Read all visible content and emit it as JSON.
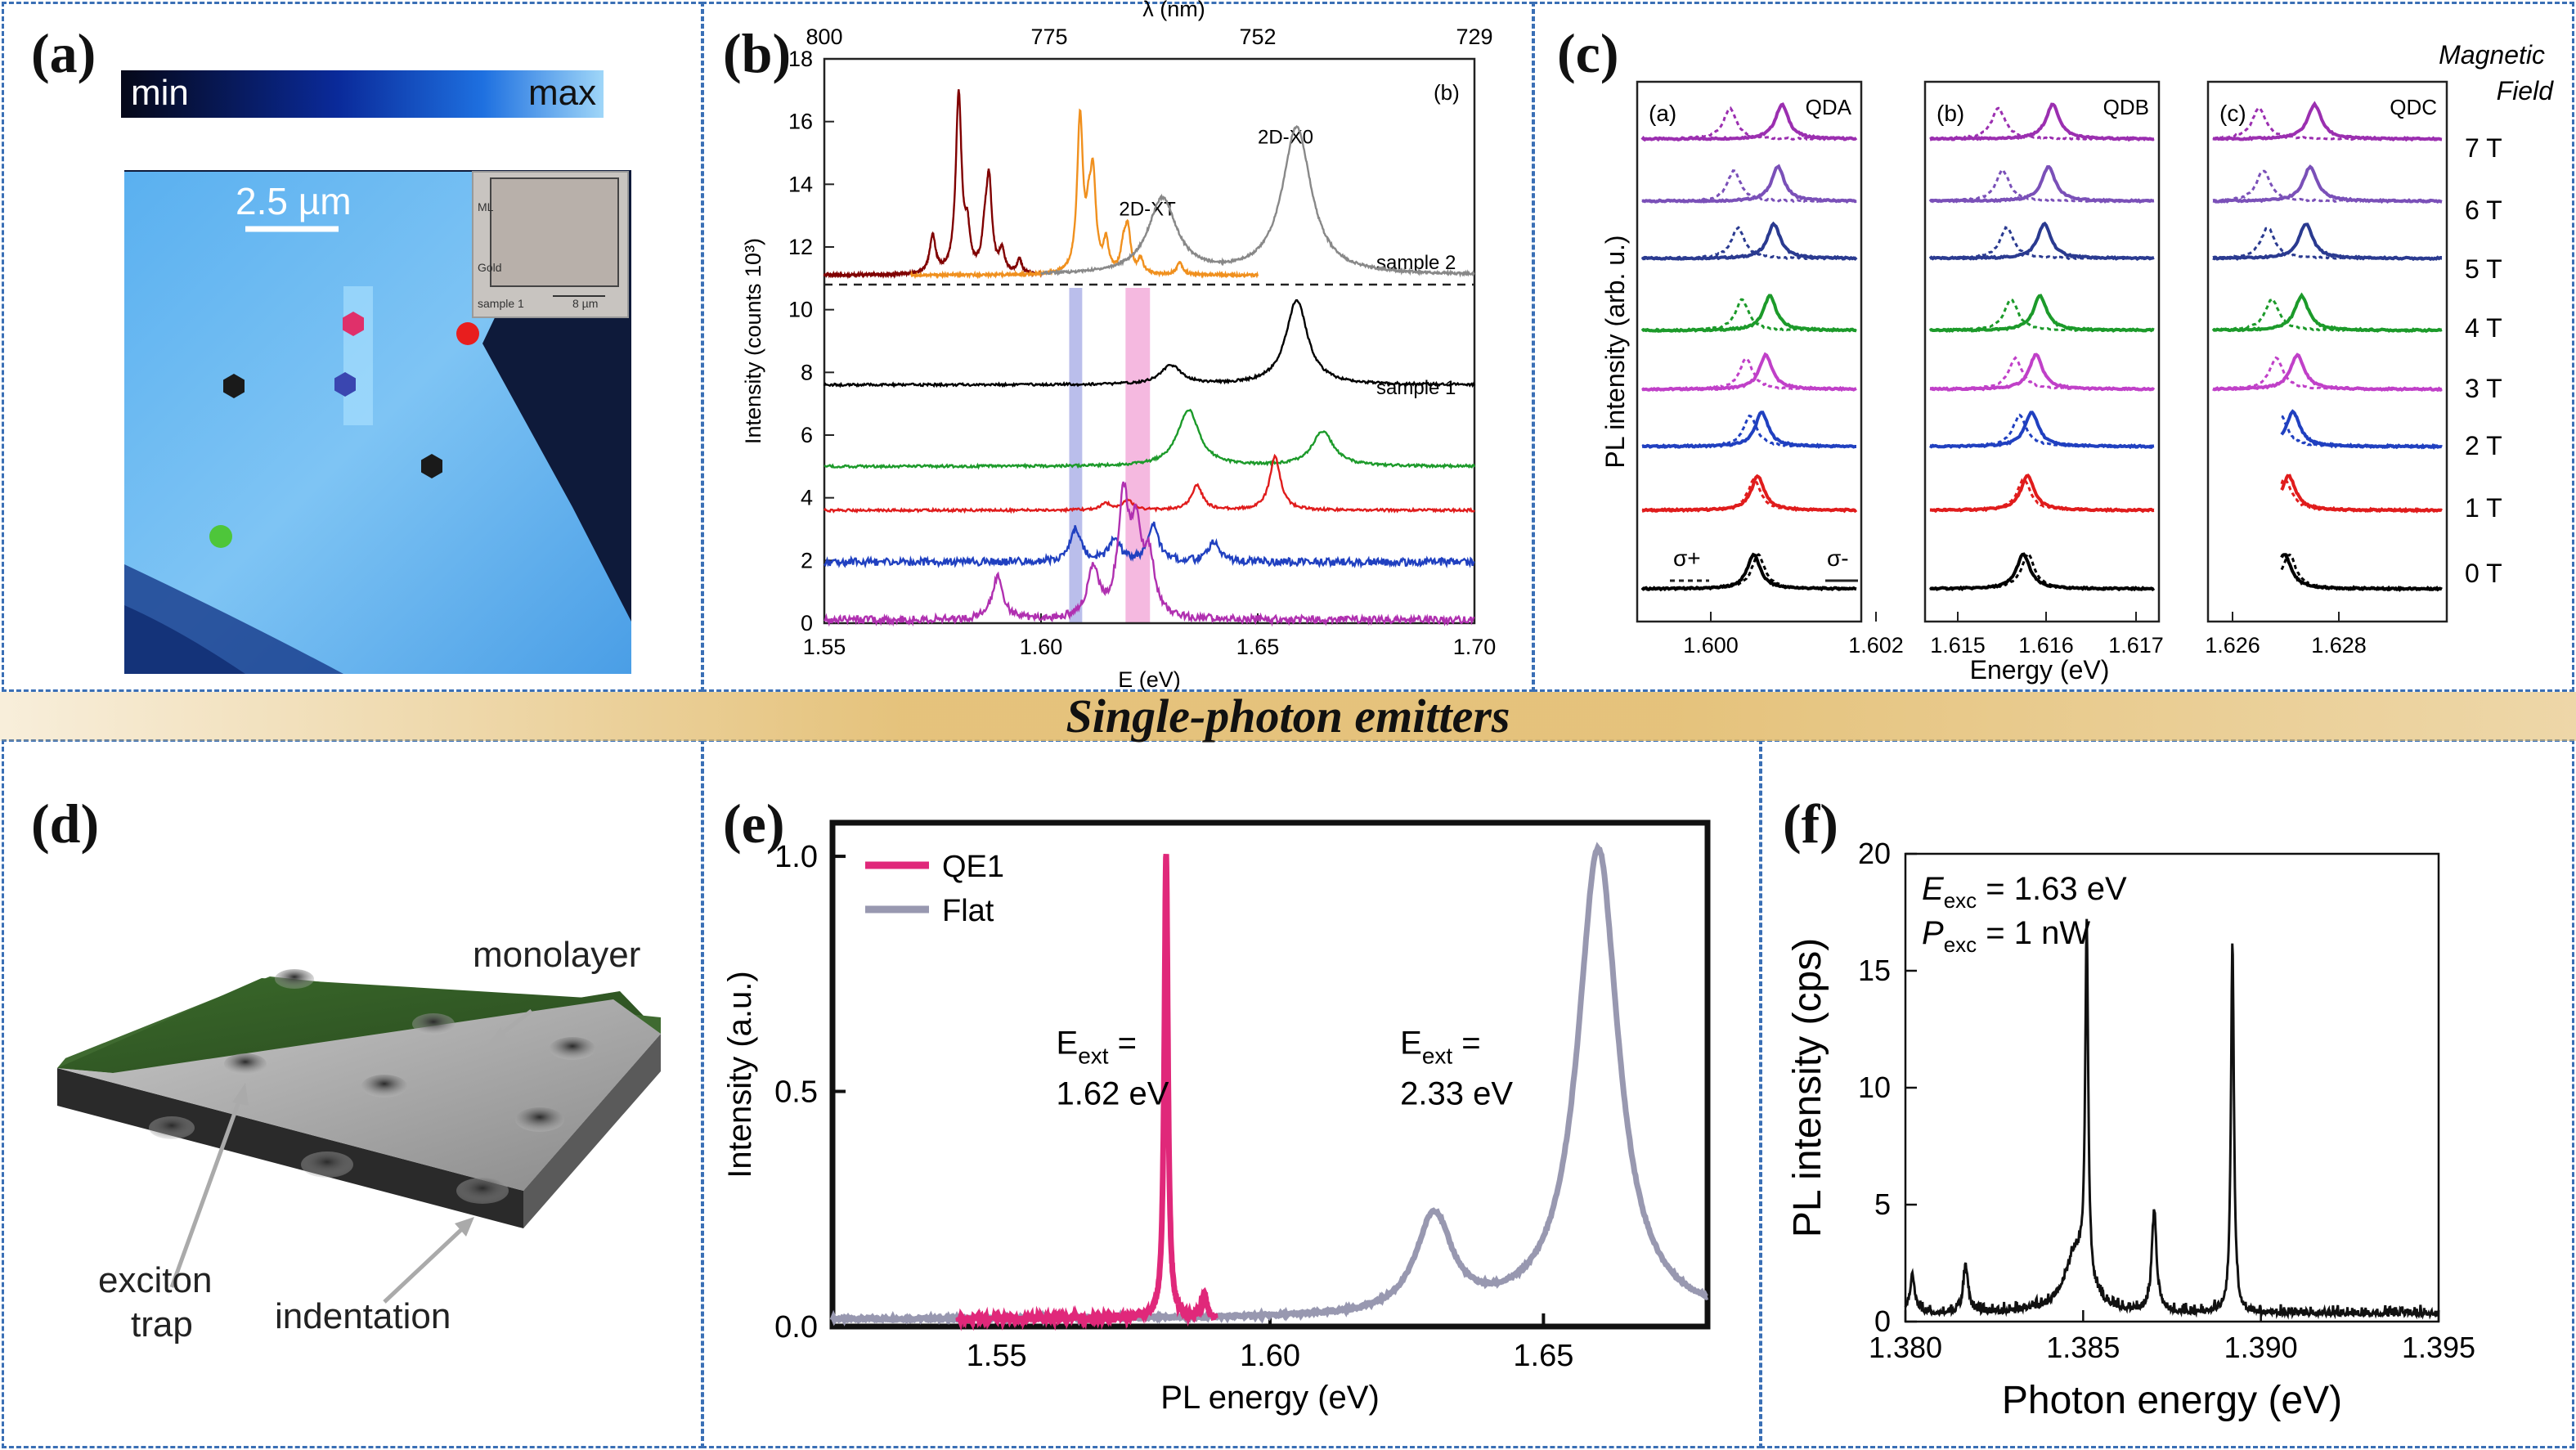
{
  "panels": {
    "a": "(a)",
    "b": "(b)",
    "c": "(c)",
    "d": "(d)",
    "e": "(e)",
    "f": "(f)"
  },
  "banner": "Single-photon emitters",
  "panel_a": {
    "colorbar": {
      "min": "min",
      "max": "max"
    },
    "scalebar": "2.5 µm",
    "inset": {
      "top": "ML",
      "mid": "Gold",
      "bottom_left": "sample 1",
      "bottom_right": "8 µm"
    },
    "marker_colors": [
      "#e0306a",
      "#e81e1e",
      "#3a46b0",
      "#1a1a1a",
      "#1a1a1a",
      "#4ec63a"
    ]
  },
  "panel_d": {
    "monolayer": "monolayer",
    "exciton_trap": [
      "exciton",
      "trap"
    ],
    "indentation": "indentation"
  },
  "chart_data": [
    {
      "id": "b",
      "type": "line",
      "xlabel": "E (eV)",
      "ylabel": "Intensity (counts 10³)",
      "top_axis_label": "λ (nm)",
      "top_ticks": [
        "800",
        "775",
        "752",
        "729"
      ],
      "xlim": [
        1.55,
        1.7
      ],
      "ylim": [
        0,
        18
      ],
      "xticks": [
        "1.55",
        "1.60",
        "1.65",
        "1.70"
      ],
      "yticks": [
        "0",
        "2",
        "4",
        "6",
        "8",
        "10",
        "12",
        "14",
        "16",
        "18"
      ],
      "corner_label": "(b)",
      "annotations": [
        "2D-XT",
        "2D-X0",
        "sample 2",
        "sample 1"
      ],
      "series": [
        {
          "color": "#800000",
          "peaks": [
            [
              1.581,
              16.8
            ],
            [
              1.588,
              14
            ],
            [
              1.575,
              12.3
            ]
          ],
          "baseline": 11.1,
          "xrange": [
            1.55,
            1.6
          ]
        },
        {
          "color": "#f0901e",
          "peaks": [
            [
              1.609,
              16
            ],
            [
              1.612,
              14
            ],
            [
              1.62,
              12.5
            ],
            [
              1.632,
              11.5
            ]
          ],
          "baseline": 11.1,
          "xrange": [
            1.57,
            1.65
          ]
        },
        {
          "color": "#888888",
          "peaks": [
            [
              1.628,
              13.5
            ],
            [
              1.659,
              15.8
            ]
          ],
          "baseline": 11.1,
          "xrange": [
            1.6,
            1.7
          ]
        },
        {
          "color": "#000000",
          "peaks": [
            [
              1.63,
              8.2
            ],
            [
              1.659,
              10.3
            ]
          ],
          "baseline": 7.6
        },
        {
          "color": "#1c9a2a",
          "peaks": [
            [
              1.634,
              6.8
            ],
            [
              1.665,
              6.1
            ]
          ],
          "baseline": 5.0
        },
        {
          "color": "#e01c1c",
          "peaks": [
            [
              1.615,
              3.8
            ],
            [
              1.636,
              4.4
            ],
            [
              1.654,
              5.3
            ],
            [
              1.62,
              3.9
            ]
          ],
          "baseline": 3.6
        },
        {
          "color": "#2040c0",
          "peaks": [
            [
              1.608,
              3.0
            ],
            [
              1.617,
              2.7
            ],
            [
              1.626,
              3.1
            ],
            [
              1.64,
              2.6
            ]
          ],
          "baseline": 1.95
        },
        {
          "color": "#b030b0",
          "peaks": [
            [
              1.59,
              1.5
            ],
            [
              1.612,
              1.7
            ],
            [
              1.619,
              3.8
            ],
            [
              1.622,
              2.6
            ],
            [
              1.625,
              1.8
            ]
          ],
          "baseline": 0.1
        }
      ],
      "bands": [
        {
          "x": 1.608,
          "color": "#a9aee6"
        },
        {
          "x": 1.621,
          "color": "#f2a8d8"
        }
      ]
    },
    {
      "id": "c",
      "type": "line",
      "ylabel": "PL intensity (arb. u.)",
      "xlabel": "Energy (eV)",
      "field_title": [
        "Magnetic",
        "Field"
      ],
      "field_labels": [
        "7 T",
        "6 T",
        "5 T",
        "4 T",
        "3 T",
        "2 T",
        "1 T",
        "0 T"
      ],
      "trace_colors": [
        "#9b2fb0",
        "#7a50b8",
        "#2a3a90",
        "#1c9a2a",
        "#c040c8",
        "#2040c0",
        "#e01c1c",
        "#000000"
      ],
      "subpanels": [
        {
          "tag": "(a)",
          "name": "QDA",
          "xticks": [
            "1.600",
            "1.602"
          ],
          "legend": [
            "σ+",
            "σ-"
          ]
        },
        {
          "tag": "(b)",
          "name": "QDB",
          "xticks": [
            "1.615",
            "1.616",
            "1.617"
          ]
        },
        {
          "tag": "(c)",
          "name": "QDC",
          "xticks": [
            "1.626",
            "1.628"
          ]
        }
      ]
    },
    {
      "id": "e",
      "type": "line",
      "xlabel": "PL energy (eV)",
      "ylabel": "Intensity (a.u.)",
      "xlim": [
        1.52,
        1.68
      ],
      "ylim": [
        0,
        1.05
      ],
      "xticks": [
        "1.55",
        "1.60",
        "1.65"
      ],
      "yticks": [
        "0.0",
        "0.5",
        "1.0"
      ],
      "series": [
        {
          "name": "QE1",
          "color": "#e0287a",
          "peak": [
            1.581,
            1.0
          ]
        },
        {
          "name": "Flat",
          "color": "#9898b0",
          "peaks": [
            [
              1.63,
              0.21
            ],
            [
              1.66,
              1.0
            ]
          ]
        }
      ],
      "annotations": [
        {
          "line1": "E",
          "sub": "ext",
          "line1b": " =",
          "line2": "1.62 eV"
        },
        {
          "line1": "E",
          "sub": "ext",
          "line1b": " =",
          "line2": "2.33 eV"
        }
      ]
    },
    {
      "id": "f",
      "type": "line",
      "xlabel": "Photon energy (eV)",
      "ylabel": "PL intensity (cps)",
      "xlim": [
        1.38,
        1.395
      ],
      "ylim": [
        0,
        20
      ],
      "xticks": [
        "1.380",
        "1.385",
        "1.390",
        "1.395"
      ],
      "yticks": [
        "0",
        "5",
        "10",
        "15",
        "20"
      ],
      "series": [
        {
          "name": "",
          "color": "#111111",
          "peaks": [
            [
              1.3851,
              15.2
            ],
            [
              1.387,
              4.2
            ],
            [
              1.3892,
              16.0
            ],
            [
              1.3817,
              2.0
            ],
            [
              1.3802,
              1.6
            ]
          ]
        }
      ],
      "legend_lines": [
        {
          "sym": "E",
          "sub": "exc",
          "val": " = 1.63 eV"
        },
        {
          "sym": "P",
          "sub": "exc",
          "val": " = 1 nW"
        }
      ]
    }
  ]
}
